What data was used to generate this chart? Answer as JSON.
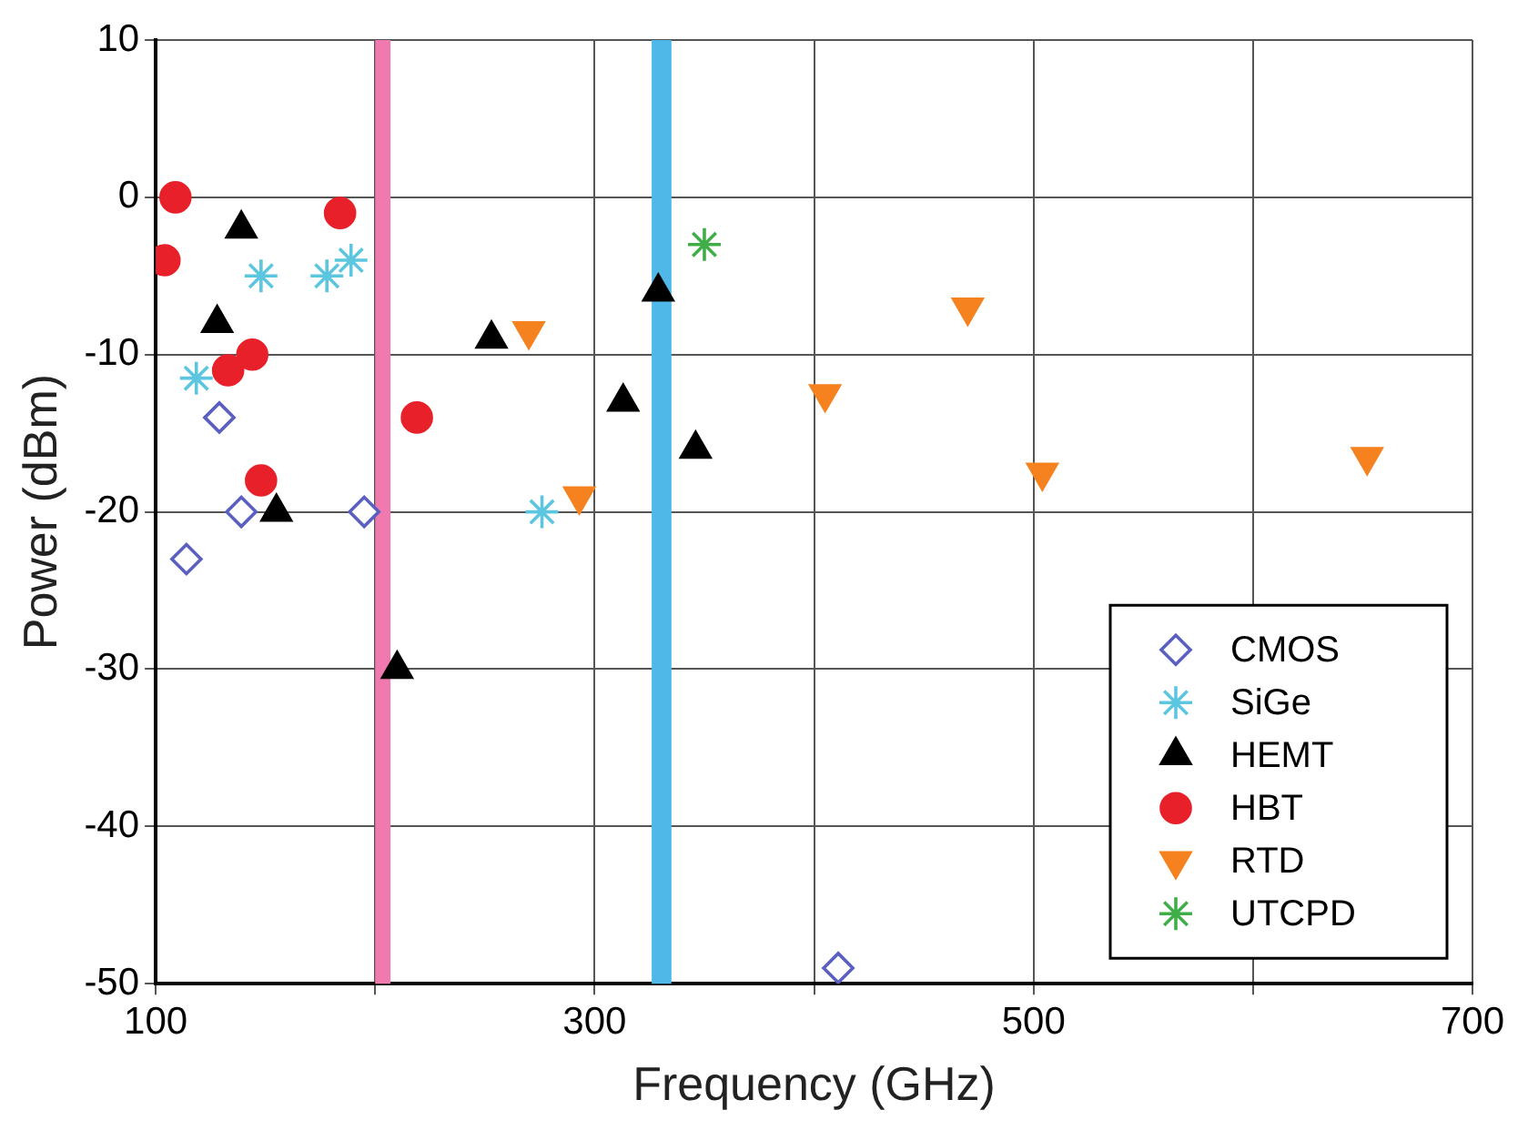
{
  "chart_data": {
    "type": "scatter",
    "xlabel": "Frequency (GHz)",
    "ylabel": "Power (dBm)",
    "xlim": [
      100,
      700
    ],
    "xticks": [
      100,
      {
        "value": 200,
        "label": null
      },
      300,
      {
        "value": 400,
        "label": null
      },
      500,
      {
        "value": 600,
        "label": null
      },
      700
    ],
    "ylim": [
      -50,
      10
    ],
    "yticks": [
      -50,
      -40,
      -30,
      -20,
      -10,
      0,
      10
    ],
    "grid": true,
    "legend": "bottom right",
    "bands": [
      {
        "axis": "x",
        "from": 200,
        "to": 207,
        "color": "#f07ab0"
      },
      {
        "axis": "x",
        "from": 326,
        "to": 335,
        "color": "#4fb8e8"
      }
    ],
    "series": [
      {
        "name": "CMOS",
        "color": "#5a5fc0",
        "marker": "diamond",
        "x": [
          114,
          129,
          139,
          195,
          411
        ],
        "values": [
          -23,
          -14,
          -20,
          -20,
          -49
        ]
      },
      {
        "name": "SiGe",
        "color": "#5cc6e0",
        "marker": "cross",
        "x": [
          118.5,
          148,
          178,
          189,
          276
        ],
        "values": [
          -11.5,
          -5,
          -5,
          -4,
          -20
        ]
      },
      {
        "name": "HEMT",
        "color": "#000000",
        "marker": "triangle",
        "x": [
          139,
          128,
          155,
          210,
          253,
          313,
          329,
          346
        ],
        "values": [
          -2,
          -8,
          -20,
          -30,
          -9,
          -13,
          -6,
          -16
        ]
      },
      {
        "name": "HBT",
        "color": "#e8202a",
        "marker": "circle",
        "x": [
          109,
          104,
          133,
          144,
          148,
          184,
          219
        ],
        "values": [
          0,
          -4,
          -11,
          -10,
          -18,
          -1,
          -14
        ]
      },
      {
        "name": "RTD",
        "color": "#f5821f",
        "marker": "triangle-down",
        "x": [
          270,
          293,
          405,
          470,
          504,
          652
        ],
        "values": [
          -8.5,
          -19,
          -12.5,
          -7,
          -17.5,
          -16.5
        ]
      },
      {
        "name": "UTCPD",
        "color": "#3fae49",
        "marker": "cross",
        "x": [
          350
        ],
        "values": [
          -3
        ]
      }
    ]
  }
}
